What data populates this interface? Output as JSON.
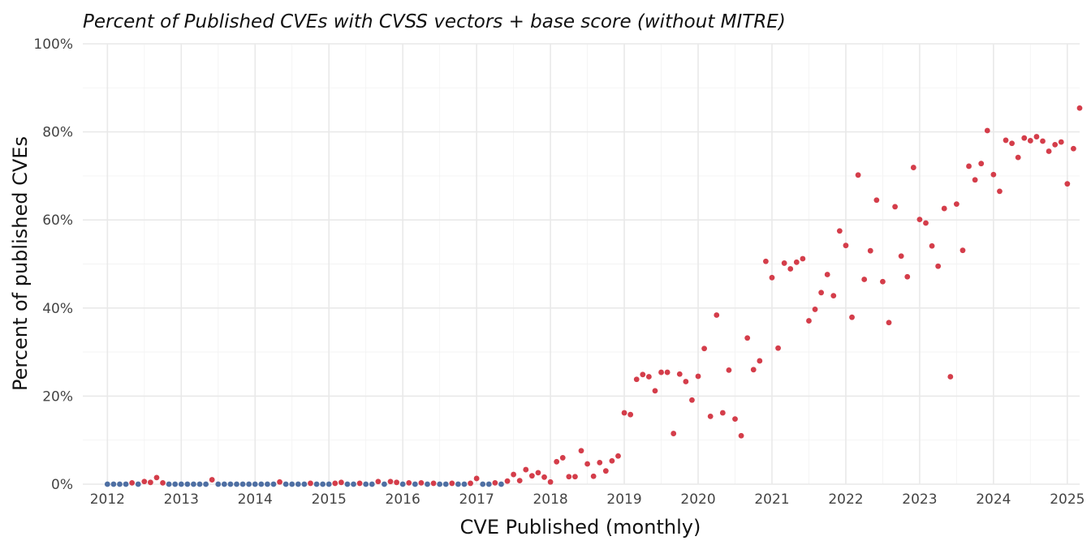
{
  "chart_data": {
    "type": "scatter",
    "title": "Percent of Published CVEs with CVSS vectors + base score (without MITRE)",
    "xlabel": "CVE Published (monthly)",
    "ylabel": "Percent of published CVEs",
    "xlim": [
      "2011-09-01",
      "2025-03-01"
    ],
    "ylim": [
      0,
      100
    ],
    "x_ticks": [
      "2012",
      "2013",
      "2014",
      "2015",
      "2016",
      "2017",
      "2018",
      "2019",
      "2020",
      "2021",
      "2022",
      "2023",
      "2024",
      "2025"
    ],
    "y_ticks": [
      "0%",
      "20%",
      "40%",
      "60%",
      "80%",
      "100%"
    ],
    "grid": true,
    "legend": "none",
    "colors": {
      "zero": "#4e6fa3",
      "nonzero": "#d43d4a"
    },
    "point_color_rule": "blue when value is 0, red when value is above 0",
    "series": [
      {
        "values": [
          [
            "2012-01",
            0
          ],
          [
            "2012-02",
            0
          ],
          [
            "2012-03",
            0
          ],
          [
            "2012-04",
            0
          ],
          [
            "2012-05",
            0.3
          ],
          [
            "2012-06",
            0
          ],
          [
            "2012-07",
            0.6
          ],
          [
            "2012-08",
            0.4
          ],
          [
            "2012-09",
            1.5
          ],
          [
            "2012-10",
            0.3
          ],
          [
            "2012-11",
            0
          ],
          [
            "2012-12",
            0
          ],
          [
            "2013-01",
            0
          ],
          [
            "2013-02",
            0
          ],
          [
            "2013-03",
            0
          ],
          [
            "2013-04",
            0
          ],
          [
            "2013-05",
            0
          ],
          [
            "2013-06",
            1.0
          ],
          [
            "2013-07",
            0
          ],
          [
            "2013-08",
            0
          ],
          [
            "2013-09",
            0
          ],
          [
            "2013-10",
            0
          ],
          [
            "2013-11",
            0
          ],
          [
            "2013-12",
            0
          ],
          [
            "2014-01",
            0
          ],
          [
            "2014-02",
            0
          ],
          [
            "2014-03",
            0
          ],
          [
            "2014-04",
            0
          ],
          [
            "2014-05",
            0.5
          ],
          [
            "2014-06",
            0
          ],
          [
            "2014-07",
            0
          ],
          [
            "2014-08",
            0
          ],
          [
            "2014-09",
            0
          ],
          [
            "2014-10",
            0.2
          ],
          [
            "2014-11",
            0
          ],
          [
            "2014-12",
            0
          ],
          [
            "2015-01",
            0
          ],
          [
            "2015-02",
            0.2
          ],
          [
            "2015-03",
            0.4
          ],
          [
            "2015-04",
            0
          ],
          [
            "2015-05",
            0
          ],
          [
            "2015-06",
            0.2
          ],
          [
            "2015-07",
            0
          ],
          [
            "2015-08",
            0
          ],
          [
            "2015-09",
            0.6
          ],
          [
            "2015-10",
            0
          ],
          [
            "2015-11",
            0.6
          ],
          [
            "2015-12",
            0.4
          ],
          [
            "2016-01",
            0
          ],
          [
            "2016-02",
            0.3
          ],
          [
            "2016-03",
            0
          ],
          [
            "2016-04",
            0.3
          ],
          [
            "2016-05",
            0
          ],
          [
            "2016-06",
            0.2
          ],
          [
            "2016-07",
            0
          ],
          [
            "2016-08",
            0
          ],
          [
            "2016-09",
            0.2
          ],
          [
            "2016-10",
            0
          ],
          [
            "2016-11",
            0
          ],
          [
            "2016-12",
            0.2
          ],
          [
            "2017-01",
            1.3
          ],
          [
            "2017-02",
            0
          ],
          [
            "2017-03",
            0
          ],
          [
            "2017-04",
            0.3
          ],
          [
            "2017-05",
            0
          ],
          [
            "2017-06",
            0.7
          ],
          [
            "2017-07",
            2.2
          ],
          [
            "2017-08",
            0.8
          ],
          [
            "2017-09",
            3.3
          ],
          [
            "2017-10",
            1.9
          ],
          [
            "2017-11",
            2.6
          ],
          [
            "2017-12",
            1.6
          ],
          [
            "2018-01",
            0.5
          ],
          [
            "2018-02",
            5.1
          ],
          [
            "2018-03",
            6.0
          ],
          [
            "2018-04",
            1.7
          ],
          [
            "2018-05",
            1.7
          ],
          [
            "2018-06",
            7.6
          ],
          [
            "2018-07",
            4.6
          ],
          [
            "2018-08",
            1.8
          ],
          [
            "2018-09",
            4.9
          ],
          [
            "2018-10",
            3.0
          ],
          [
            "2018-11",
            5.3
          ],
          [
            "2018-12",
            6.4
          ],
          [
            "2019-01",
            16.2
          ],
          [
            "2019-02",
            15.8
          ],
          [
            "2019-03",
            23.8
          ],
          [
            "2019-04",
            24.9
          ],
          [
            "2019-05",
            24.4
          ],
          [
            "2019-06",
            21.2
          ],
          [
            "2019-07",
            25.4
          ],
          [
            "2019-08",
            25.4
          ],
          [
            "2019-09",
            11.5
          ],
          [
            "2019-10",
            25.0
          ],
          [
            "2019-11",
            23.3
          ],
          [
            "2019-12",
            19.1
          ],
          [
            "2020-01",
            24.5
          ],
          [
            "2020-02",
            30.8
          ],
          [
            "2020-03",
            15.4
          ],
          [
            "2020-04",
            38.4
          ],
          [
            "2020-05",
            16.2
          ],
          [
            "2020-06",
            25.9
          ],
          [
            "2020-07",
            14.8
          ],
          [
            "2020-08",
            11.0
          ],
          [
            "2020-09",
            33.2
          ],
          [
            "2020-10",
            26.0
          ],
          [
            "2020-11",
            28.0
          ],
          [
            "2020-12",
            50.6
          ],
          [
            "2021-01",
            46.9
          ],
          [
            "2021-02",
            30.9
          ],
          [
            "2021-03",
            50.2
          ],
          [
            "2021-04",
            48.9
          ],
          [
            "2021-05",
            50.4
          ],
          [
            "2021-06",
            51.2
          ],
          [
            "2021-07",
            37.1
          ],
          [
            "2021-08",
            39.7
          ],
          [
            "2021-09",
            43.5
          ],
          [
            "2021-10",
            47.6
          ],
          [
            "2021-11",
            42.8
          ],
          [
            "2021-12",
            57.5
          ],
          [
            "2022-01",
            54.2
          ],
          [
            "2022-02",
            37.9
          ],
          [
            "2022-03",
            70.2
          ],
          [
            "2022-04",
            46.5
          ],
          [
            "2022-05",
            53.0
          ],
          [
            "2022-06",
            64.5
          ],
          [
            "2022-07",
            46.0
          ],
          [
            "2022-08",
            36.7
          ],
          [
            "2022-09",
            63.0
          ],
          [
            "2022-10",
            51.8
          ],
          [
            "2022-11",
            47.1
          ],
          [
            "2022-12",
            71.9
          ],
          [
            "2023-01",
            60.1
          ],
          [
            "2023-02",
            59.3
          ],
          [
            "2023-03",
            54.1
          ],
          [
            "2023-04",
            49.5
          ],
          [
            "2023-05",
            62.6
          ],
          [
            "2023-06",
            24.4
          ],
          [
            "2023-07",
            63.6
          ],
          [
            "2023-08",
            53.1
          ],
          [
            "2023-09",
            72.2
          ],
          [
            "2023-10",
            69.1
          ],
          [
            "2023-11",
            72.8
          ],
          [
            "2023-12",
            80.3
          ],
          [
            "2024-01",
            70.3
          ],
          [
            "2024-02",
            66.5
          ],
          [
            "2024-03",
            78.1
          ],
          [
            "2024-04",
            77.4
          ],
          [
            "2024-05",
            74.2
          ],
          [
            "2024-06",
            78.6
          ],
          [
            "2024-07",
            78.0
          ],
          [
            "2024-08",
            78.9
          ],
          [
            "2024-09",
            77.9
          ],
          [
            "2024-10",
            75.6
          ],
          [
            "2024-11",
            77.1
          ],
          [
            "2024-12",
            77.7
          ],
          [
            "2025-01",
            68.2
          ],
          [
            "2025-02",
            76.2
          ],
          [
            "2025-03",
            85.4
          ]
        ]
      }
    ]
  }
}
